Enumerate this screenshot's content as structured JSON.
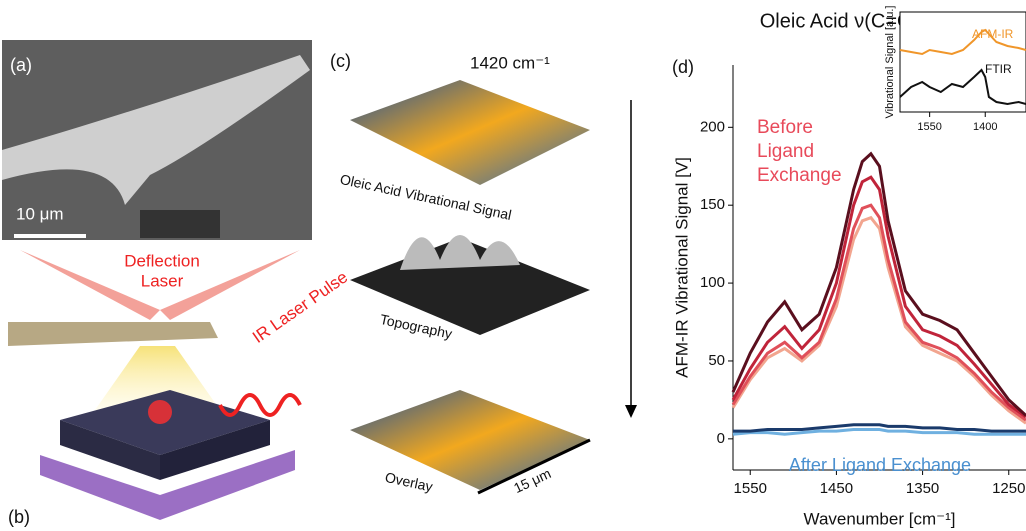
{
  "panels": {
    "a": {
      "label": "(a)",
      "scale_bar": "10 μm"
    },
    "b": {
      "label": "(b)",
      "deflection": [
        "Deflection",
        "Laser"
      ],
      "pulse": "IR Laser Pulse"
    },
    "c": {
      "label": "(c)",
      "wavenumber": "1420 cm⁻¹",
      "layers": [
        "Oleic Acid Vibrational Signal",
        "Topography",
        "Overlay"
      ],
      "scale": "15 μm"
    },
    "d": {
      "label": "(d)"
    }
  },
  "chart_data": [
    {
      "type": "line",
      "title": "Oleic Acid ν(C=O)",
      "x_label": "Wavenumber [cm⁻¹]",
      "y_label": "AFM-IR Vibrational Signal [V]",
      "annotations": [
        "Before",
        "Ligand",
        "Exchange",
        "After Ligand Exchange"
      ],
      "x": [
        1570,
        1550,
        1530,
        1510,
        1490,
        1470,
        1450,
        1430,
        1420,
        1410,
        1400,
        1390,
        1370,
        1350,
        1330,
        1310,
        1290,
        1270,
        1250,
        1230
      ],
      "series": [
        {
          "color": "#f2a58f",
          "values": [
            20,
            38,
            52,
            58,
            50,
            60,
            85,
            128,
            140,
            142,
            135,
            110,
            72,
            60,
            55,
            50,
            40,
            28,
            18,
            10
          ]
        },
        {
          "color": "#e0505a",
          "values": [
            22,
            40,
            55,
            62,
            52,
            62,
            90,
            135,
            148,
            150,
            142,
            115,
            75,
            62,
            58,
            52,
            42,
            30,
            20,
            12
          ]
        },
        {
          "color": "#c0243a",
          "values": [
            25,
            45,
            62,
            72,
            58,
            70,
            100,
            150,
            165,
            168,
            160,
            130,
            85,
            70,
            66,
            60,
            48,
            35,
            22,
            14
          ]
        },
        {
          "color": "#5a0f1e",
          "values": [
            30,
            55,
            75,
            88,
            70,
            80,
            110,
            160,
            178,
            183,
            175,
            140,
            95,
            80,
            76,
            70,
            55,
            40,
            25,
            15
          ]
        },
        {
          "color": "#6fb0e0",
          "values": [
            3,
            4,
            4,
            3,
            4,
            5,
            5,
            6,
            6,
            6,
            6,
            5,
            5,
            4,
            4,
            4,
            3,
            3,
            3,
            3
          ]
        },
        {
          "color": "#1a3a6b",
          "values": [
            5,
            5,
            6,
            6,
            6,
            7,
            8,
            9,
            9,
            9,
            9,
            8,
            8,
            7,
            7,
            6,
            6,
            5,
            5,
            5
          ]
        }
      ],
      "xlim": [
        1570,
        1230
      ],
      "xticks": [
        1550,
        1450,
        1350,
        1250
      ],
      "ylim": [
        -20,
        240
      ],
      "yticks": [
        0,
        50,
        100,
        150,
        200
      ]
    },
    {
      "type": "line",
      "y_label": "Vibrational Signal [a.u.]",
      "x": [
        1630,
        1600,
        1570,
        1550,
        1520,
        1490,
        1460,
        1430,
        1410,
        1400,
        1390,
        1370,
        1340,
        1310,
        1290
      ],
      "series": [
        {
          "name": "AFM-IR",
          "color": "#f0962a",
          "values": [
            0.62,
            0.6,
            0.58,
            0.62,
            0.6,
            0.58,
            0.62,
            0.72,
            0.8,
            0.82,
            0.78,
            0.7,
            0.66,
            0.64,
            0.62
          ]
        },
        {
          "name": "FTIR",
          "color": "#111111",
          "values": [
            0.15,
            0.25,
            0.3,
            0.25,
            0.2,
            0.28,
            0.25,
            0.35,
            0.42,
            0.35,
            0.15,
            0.1,
            0.08,
            0.1,
            0.08
          ]
        }
      ],
      "xlim": [
        1630,
        1290
      ],
      "xticks": [
        1550,
        1400
      ],
      "ylim": [
        0,
        1
      ]
    }
  ]
}
